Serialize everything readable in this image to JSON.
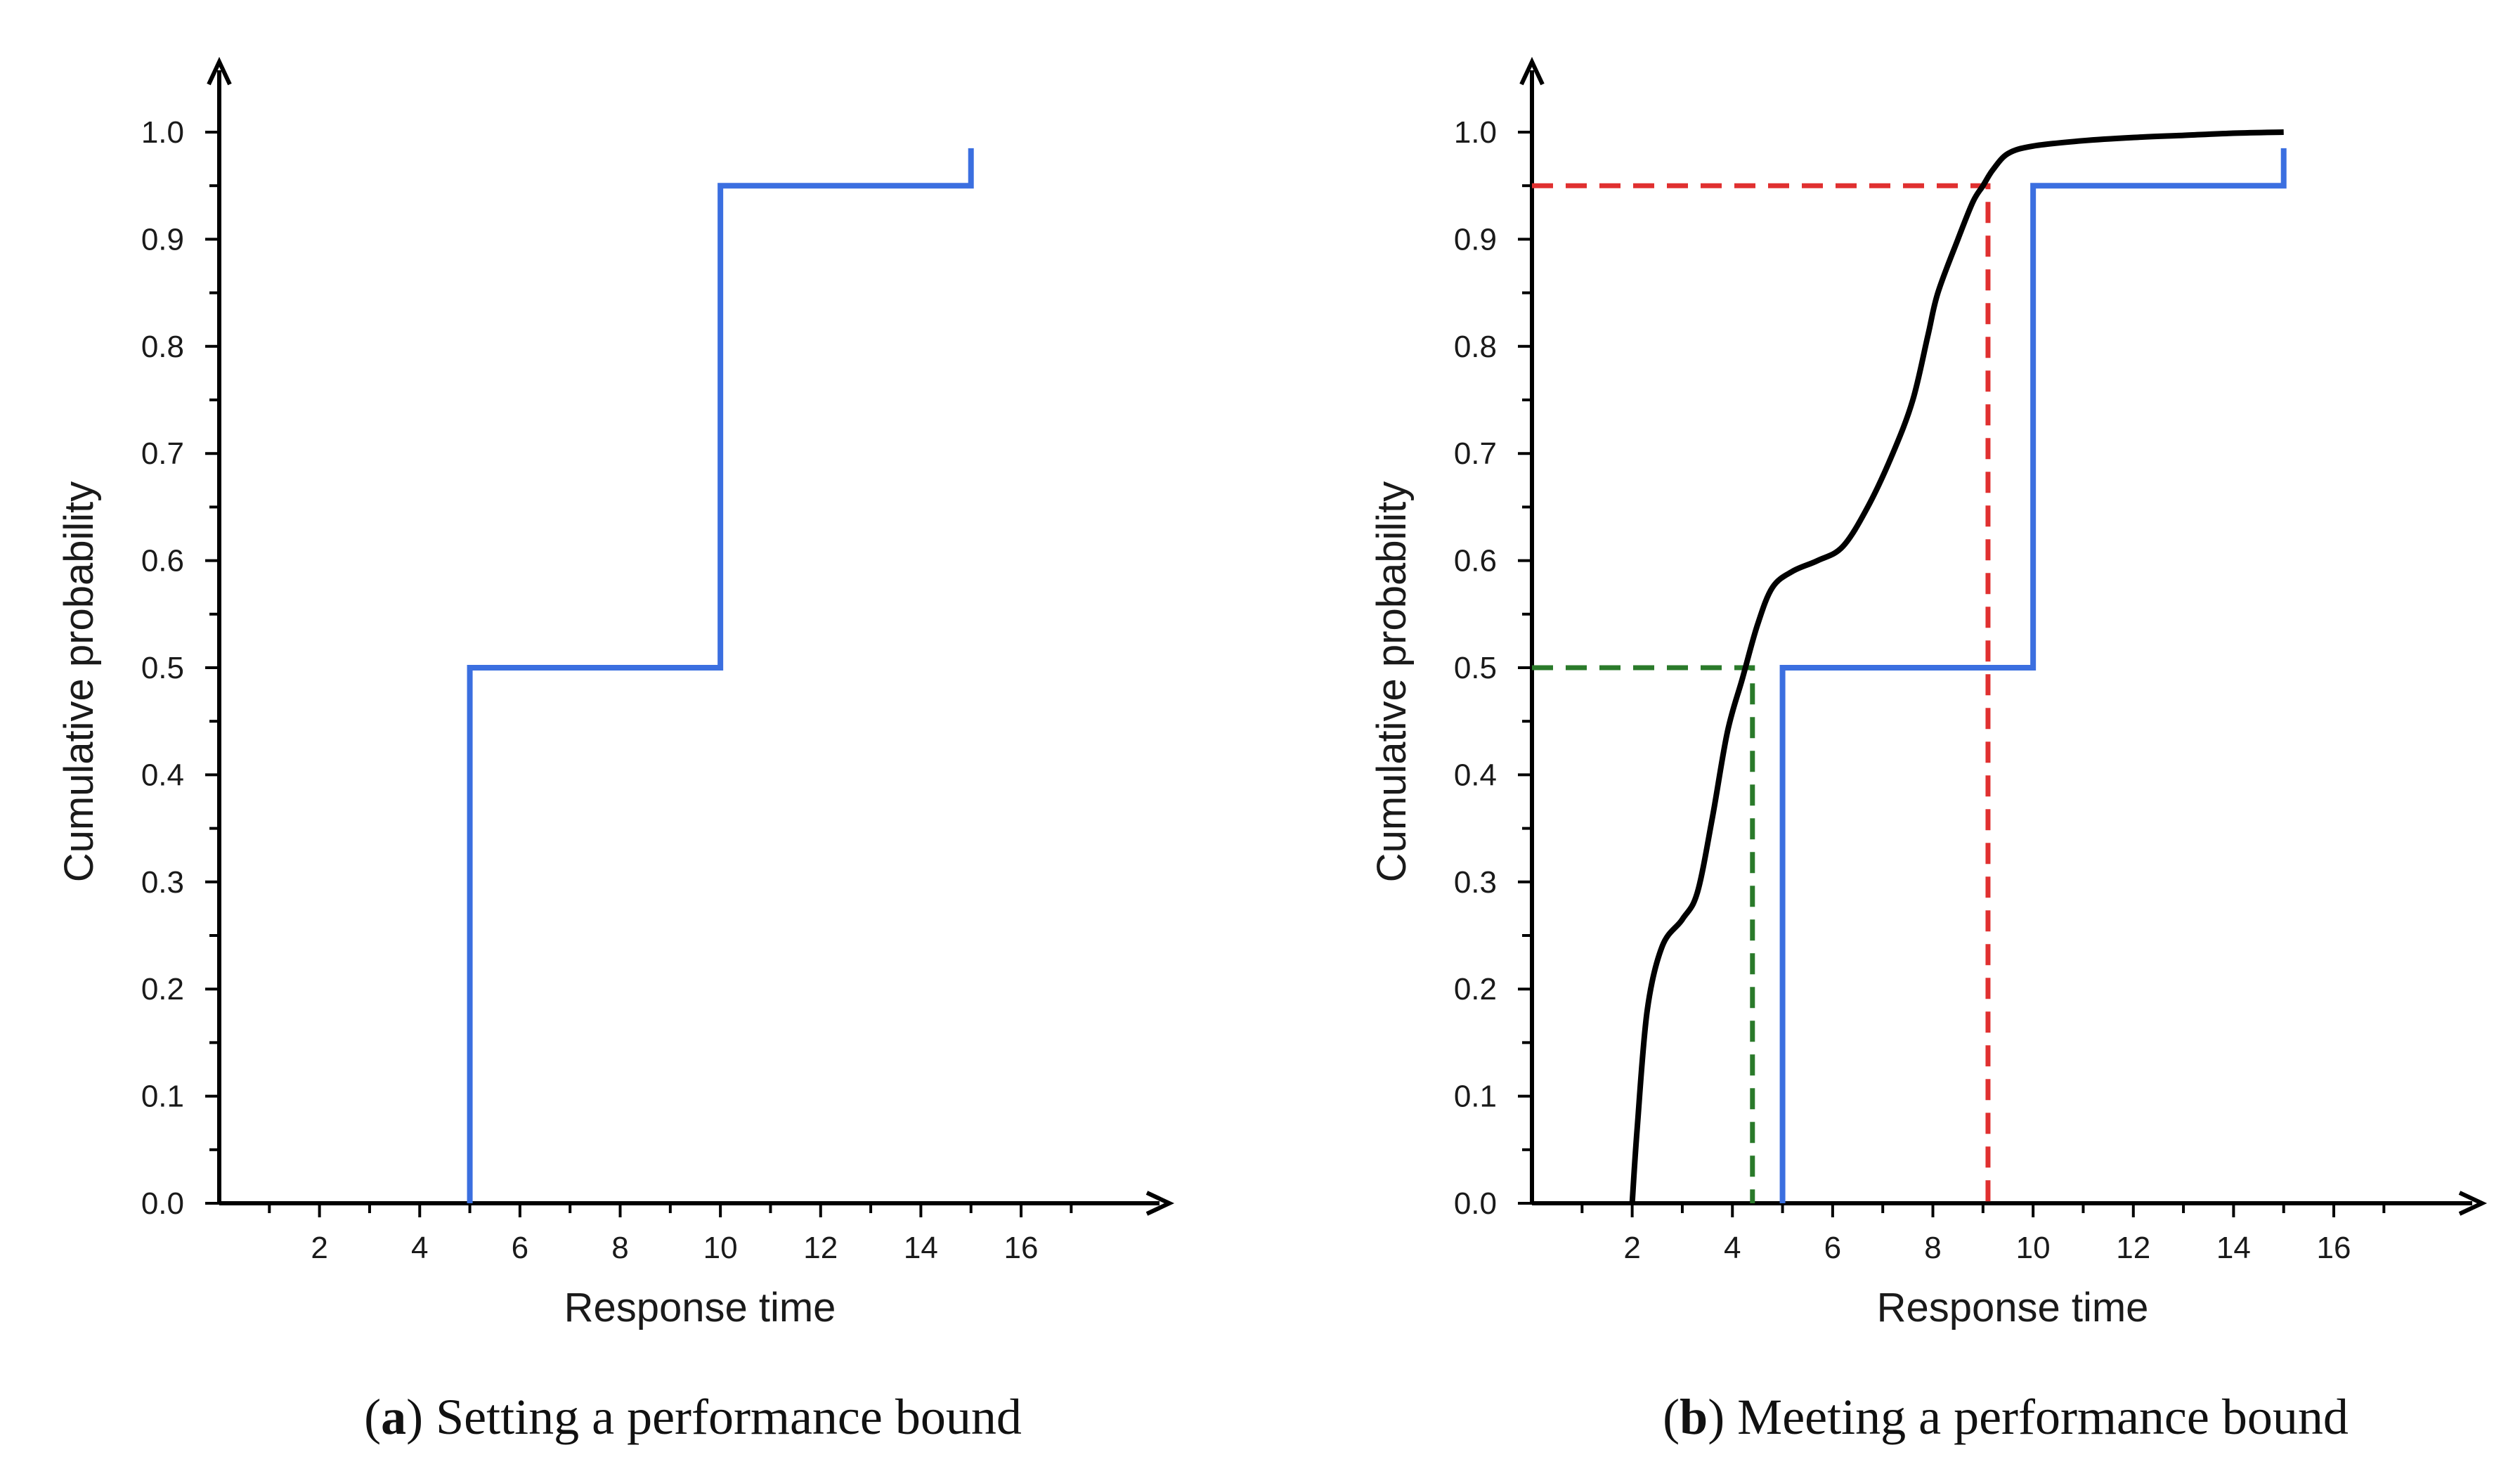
{
  "chart_data": [
    {
      "type": "line",
      "panel_label": "a",
      "caption": "Setting a performance bound",
      "xlabel": "Response time",
      "ylabel": "Cumulative probability",
      "xlim": [
        0,
        17.5
      ],
      "ylim": [
        0,
        1.0
      ],
      "xticks": [
        2,
        4,
        6,
        8,
        10,
        12,
        14,
        16
      ],
      "yticks": [
        "0.0",
        "0.1",
        "0.2",
        "0.3",
        "0.4",
        "0.5",
        "0.6",
        "0.7",
        "0.8",
        "0.9",
        "1.0"
      ],
      "grid": false,
      "series": [
        {
          "color": "#3b6fe0",
          "style": "solid",
          "step": true,
          "x": [
            5,
            5,
            10,
            10,
            15,
            15
          ],
          "y": [
            0,
            0.5,
            0.5,
            0.95,
            0.95,
            0.985
          ]
        }
      ]
    },
    {
      "type": "line",
      "panel_label": "b",
      "caption": "Meeting a performance bound",
      "xlabel": "Response time",
      "ylabel": "Cumulative probability",
      "xlim": [
        0,
        17.5
      ],
      "ylim": [
        0,
        1.0
      ],
      "xticks": [
        2,
        4,
        6,
        8,
        10,
        12,
        14,
        16
      ],
      "yticks": [
        "0.0",
        "0.1",
        "0.2",
        "0.3",
        "0.4",
        "0.5",
        "0.6",
        "0.7",
        "0.8",
        "0.9",
        "1.0"
      ],
      "grid": false,
      "series": [
        {
          "color": "#3b6fe0",
          "style": "solid",
          "step": true,
          "x": [
            5,
            5,
            10,
            10,
            15,
            15
          ],
          "y": [
            0,
            0.5,
            0.5,
            0.95,
            0.95,
            0.985
          ]
        },
        {
          "color": "#000000",
          "style": "solid",
          "step": false,
          "x": [
            2.0,
            2.1,
            2.3,
            2.6,
            3.0,
            3.3,
            3.6,
            3.9,
            4.2,
            4.5,
            4.8,
            5.2,
            5.7,
            6.2,
            6.7,
            7.2,
            7.6,
            7.9,
            8.1,
            8.5,
            8.8,
            9.0,
            9.2,
            9.5,
            10.0,
            11.0,
            12.0,
            13.0,
            14.0,
            15.0
          ],
          "y": [
            0.0,
            0.07,
            0.18,
            0.24,
            0.265,
            0.29,
            0.36,
            0.44,
            0.49,
            0.54,
            0.575,
            0.59,
            0.6,
            0.613,
            0.65,
            0.7,
            0.75,
            0.81,
            0.85,
            0.9,
            0.935,
            0.95,
            0.965,
            0.98,
            0.987,
            0.992,
            0.995,
            0.997,
            0.999,
            1.0
          ]
        }
      ],
      "guides": [
        {
          "color": "#e03030",
          "style": "dashed",
          "x": 9.1,
          "y": 0.95
        },
        {
          "color": "#2a7a2a",
          "style": "dashed",
          "x": 4.4,
          "y": 0.5
        }
      ]
    }
  ]
}
